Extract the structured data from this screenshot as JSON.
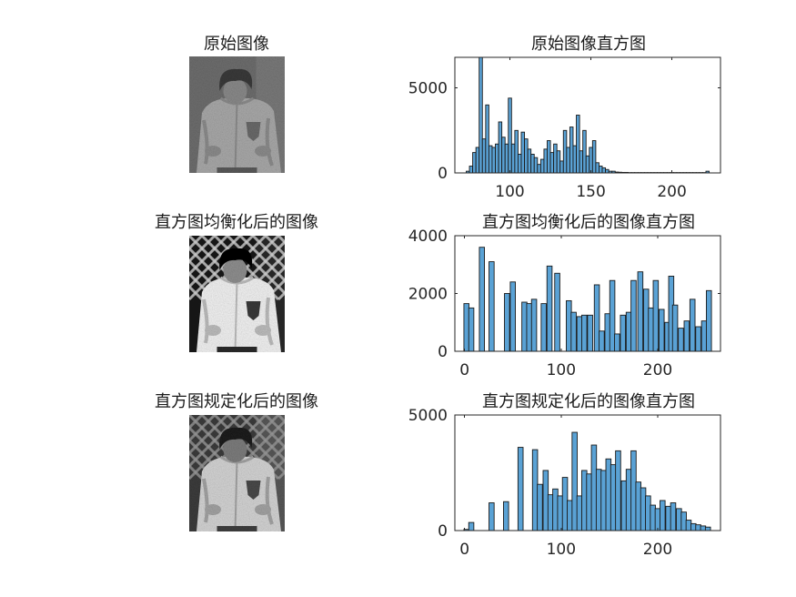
{
  "figure": {
    "bar_color": "#5AA2D5",
    "bar_edge_color": "#1a1a1a",
    "image_titles": [
      "原始图像",
      "直方图均衡化后的图像",
      "直方图规定化后的图像"
    ],
    "images": [
      {
        "kind": "original",
        "description_icon": "grayscale-photo-child-jacket",
        "contrast": "low"
      },
      {
        "kind": "equalized",
        "description_icon": "grayscale-photo-child-jacket",
        "contrast": "high"
      },
      {
        "kind": "specified",
        "description_icon": "grayscale-photo-child-jacket",
        "contrast": "medium"
      }
    ]
  },
  "chart_data": [
    {
      "type": "bar",
      "title": "原始图像直方图",
      "xlabel": "",
      "ylabel": "",
      "xlim": [
        66,
        230
      ],
      "ylim": [
        0,
        6800
      ],
      "xticks": [
        100,
        150,
        200
      ],
      "yticks": [
        0,
        5000
      ],
      "bin_width": 2,
      "x": [
        74,
        76,
        78,
        80,
        82,
        84,
        86,
        88,
        90,
        92,
        94,
        96,
        98,
        100,
        102,
        104,
        106,
        108,
        110,
        112,
        114,
        116,
        118,
        120,
        122,
        124,
        126,
        128,
        130,
        132,
        134,
        136,
        138,
        140,
        142,
        144,
        146,
        148,
        150,
        152,
        154,
        156,
        158,
        160,
        162,
        164,
        166,
        168,
        170,
        172,
        174,
        176,
        178,
        180,
        182,
        184,
        186,
        188,
        190,
        192,
        194,
        196,
        198,
        200,
        202,
        204,
        206,
        208,
        210,
        212,
        214,
        216,
        218,
        220,
        222
      ],
      "values": [
        100,
        400,
        1200,
        1500,
        6800,
        2000,
        4000,
        1600,
        1500,
        1700,
        3000,
        2100,
        1700,
        4400,
        1700,
        2500,
        1100,
        2400,
        2000,
        1400,
        1100,
        900,
        500,
        800,
        1400,
        1900,
        1200,
        1700,
        1300,
        700,
        2500,
        1500,
        2700,
        1600,
        3400,
        1300,
        2500,
        1000,
        1500,
        1900,
        600,
        400,
        300,
        200,
        100,
        100,
        50,
        40,
        30,
        30,
        20,
        20,
        20,
        20,
        20,
        20,
        20,
        20,
        20,
        20,
        20,
        20,
        20,
        20,
        20,
        20,
        20,
        20,
        20,
        20,
        20,
        20,
        20,
        20,
        100
      ]
    },
    {
      "type": "bar",
      "title": "直方图均衡化后的图像直方图",
      "xlabel": "",
      "ylabel": "",
      "xlim": [
        -10,
        265
      ],
      "ylim": [
        0,
        4000
      ],
      "xticks": [
        0,
        100,
        200
      ],
      "yticks": [
        0,
        2000,
        4000
      ],
      "bin_width": 5.3,
      "x": [
        2,
        7,
        18,
        28,
        44,
        50,
        62,
        67,
        72,
        82,
        88,
        96,
        108,
        113,
        119,
        124,
        130,
        137,
        142,
        148,
        153,
        158,
        164,
        170,
        175,
        182,
        188,
        193,
        198,
        204,
        210,
        214,
        218,
        224,
        230,
        236,
        242,
        248,
        253
      ],
      "values": [
        1650,
        1500,
        3600,
        3100,
        2000,
        2400,
        1700,
        1650,
        1800,
        1650,
        2950,
        2700,
        1750,
        1350,
        1200,
        1250,
        1250,
        2300,
        700,
        1300,
        2450,
        600,
        1250,
        1350,
        2450,
        2750,
        2150,
        1500,
        2450,
        1450,
        1000,
        2600,
        1600,
        800,
        1050,
        1800,
        850,
        1050,
        2100
      ]
    },
    {
      "type": "bar",
      "title": "直方图规定化后的图像直方图",
      "xlabel": "",
      "ylabel": "",
      "xlim": [
        -10,
        265
      ],
      "ylim": [
        0,
        5000
      ],
      "xticks": [
        0,
        100,
        200
      ],
      "yticks": [
        0,
        5000
      ],
      "bin_width": 5.3,
      "x": [
        2,
        7,
        28,
        43,
        58,
        73,
        78,
        84,
        89,
        94,
        99,
        104,
        109,
        114,
        119,
        124,
        129,
        134,
        139,
        144,
        149,
        154,
        159,
        165,
        170,
        175,
        180,
        185,
        190,
        195,
        200,
        205,
        211,
        216,
        222,
        227,
        232,
        237,
        242,
        247,
        252
      ],
      "values": [
        50,
        350,
        1200,
        1250,
        3600,
        3500,
        2000,
        2600,
        1550,
        1800,
        1500,
        2300,
        1300,
        4250,
        1500,
        2600,
        2450,
        3700,
        2650,
        2600,
        3100,
        2850,
        3450,
        2150,
        2650,
        3450,
        2100,
        1850,
        1500,
        1100,
        950,
        1300,
        1050,
        1200,
        950,
        800,
        450,
        300,
        250,
        200,
        150
      ]
    }
  ]
}
